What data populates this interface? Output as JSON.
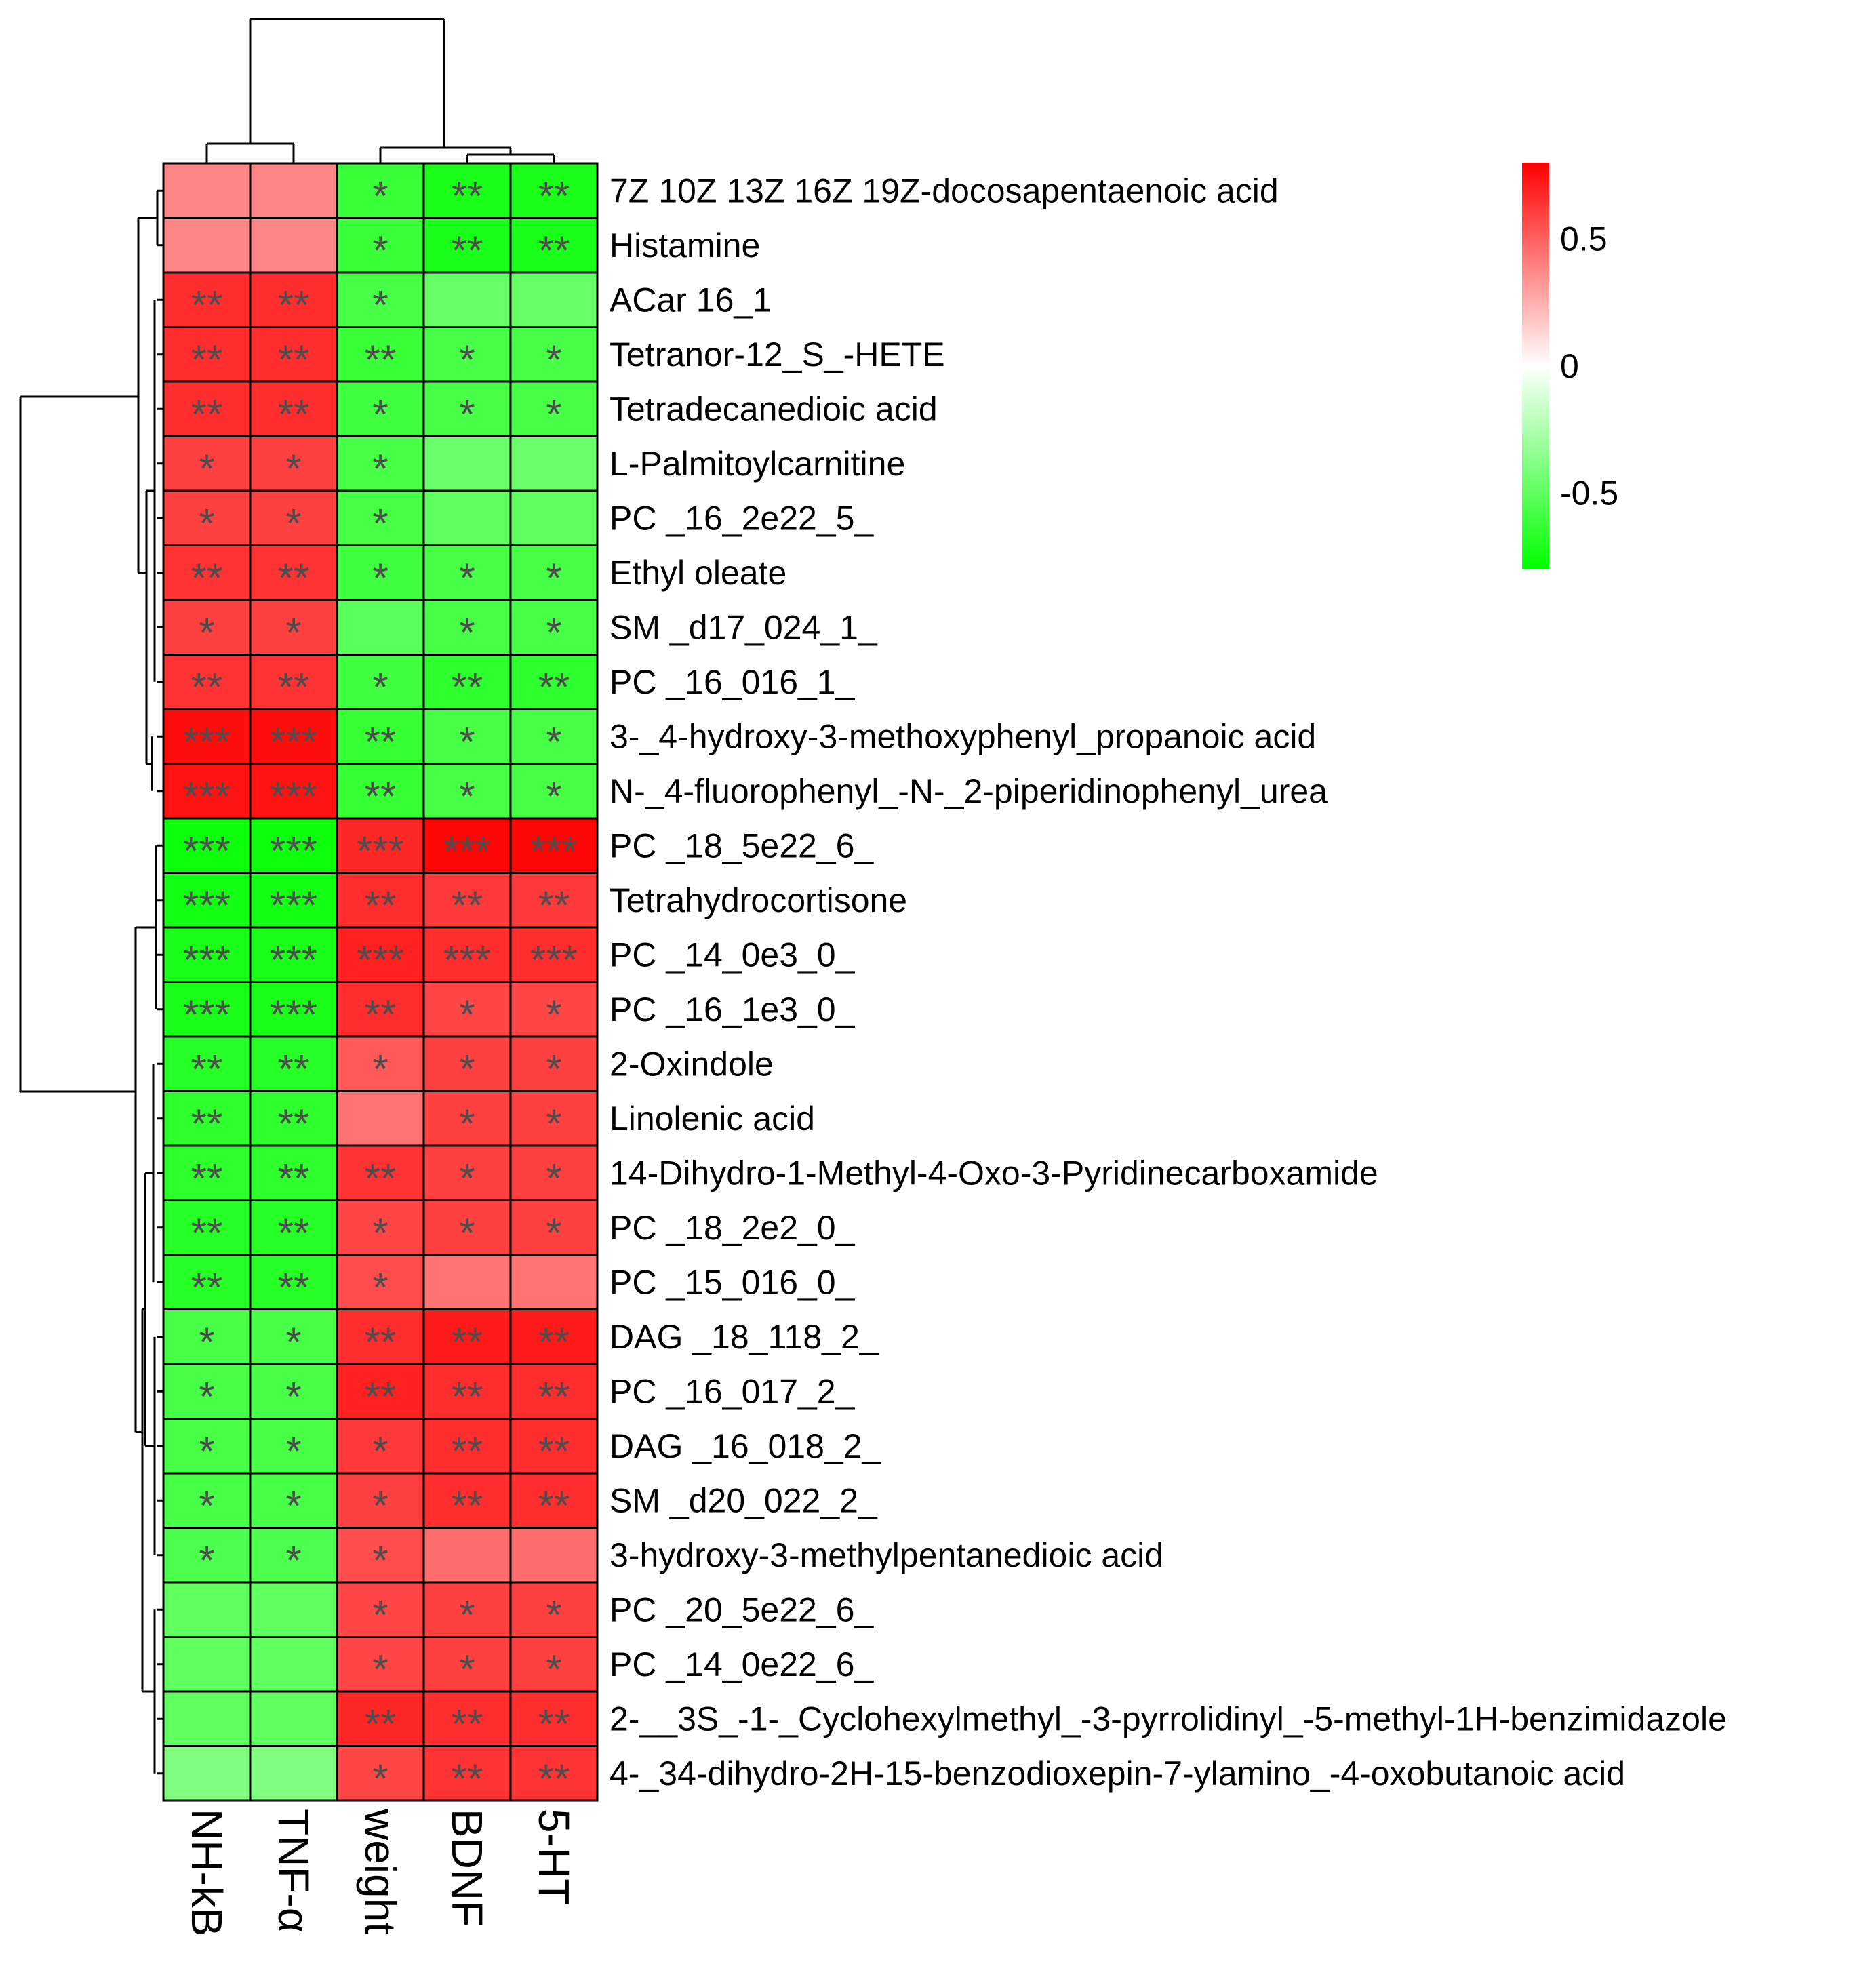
{
  "chart_data": {
    "type": "heatmap",
    "title": "",
    "columns": [
      "NH-kB",
      "TNF-α",
      "weight",
      "BDNF",
      "5-HT"
    ],
    "rows": [
      "7Z 10Z 13Z 16Z 19Z-docosapentaenoic acid",
      "Histamine",
      "ACar 16_1",
      "Tetranor-12_S_-HETE",
      "Tetradecanedioic acid",
      "L-Palmitoylcarnitine",
      "PC _16_2e22_5_",
      "Ethyl oleate",
      "SM _d17_024_1_",
      "PC _16_016_1_",
      "3-_4-hydroxy-3-methoxyphenyl_propanoic acid",
      "N-_4-fluorophenyl_-N-_2-piperidinophenyl_urea",
      "PC _18_5e22_6_",
      "Tetrahydrocortisone",
      "PC _14_0e3_0_",
      "PC _16_1e3_0_",
      "2-Oxindole",
      "Linolenic acid",
      "14-Dihydro-1-Methyl-4-Oxo-3-Pyridinecarboxamide",
      "PC _18_2e2_0_",
      "PC _15_016_0_",
      "DAG _18_118_2_",
      "PC _16_017_2_",
      "DAG _16_018_2_",
      "SM _d20_022_2_",
      "3-hydroxy-3-methylpentanedioic acid",
      "PC _20_5e22_6_",
      "PC _14_0e22_6_",
      "2-__3S_-1-_Cyclohexylmethyl_-3-pyrrolidinyl_-5-methyl-1H-benzimidazole",
      "4-_34-dihydro-2H-15-benzodioxepin-7-ylamino_-4-oxobutanoic acid"
    ],
    "values": [
      [
        0.38,
        0.38,
        -0.62,
        -0.72,
        -0.72
      ],
      [
        0.38,
        0.38,
        -0.62,
        -0.72,
        -0.72
      ],
      [
        0.66,
        0.66,
        -0.58,
        -0.48,
        -0.48
      ],
      [
        0.66,
        0.66,
        -0.62,
        -0.58,
        -0.58
      ],
      [
        0.66,
        0.66,
        -0.6,
        -0.58,
        -0.58
      ],
      [
        0.6,
        0.6,
        -0.58,
        -0.46,
        -0.46
      ],
      [
        0.6,
        0.6,
        -0.58,
        -0.5,
        -0.5
      ],
      [
        0.64,
        0.64,
        -0.6,
        -0.58,
        -0.58
      ],
      [
        0.6,
        0.6,
        -0.52,
        -0.58,
        -0.58
      ],
      [
        0.64,
        0.64,
        -0.6,
        -0.66,
        -0.66
      ],
      [
        0.76,
        0.76,
        -0.64,
        -0.58,
        -0.58
      ],
      [
        0.74,
        0.74,
        -0.64,
        -0.58,
        -0.58
      ],
      [
        -0.76,
        -0.76,
        0.68,
        0.78,
        0.78
      ],
      [
        -0.74,
        -0.74,
        0.66,
        0.62,
        0.62
      ],
      [
        -0.72,
        -0.72,
        0.7,
        0.66,
        0.66
      ],
      [
        -0.72,
        -0.72,
        0.66,
        0.58,
        0.58
      ],
      [
        -0.68,
        -0.68,
        0.52,
        0.6,
        0.6
      ],
      [
        -0.66,
        -0.66,
        0.44,
        0.6,
        0.6
      ],
      [
        -0.66,
        -0.66,
        0.64,
        0.6,
        0.6
      ],
      [
        -0.68,
        -0.68,
        0.58,
        0.6,
        0.6
      ],
      [
        -0.68,
        -0.68,
        0.56,
        0.44,
        0.44
      ],
      [
        -0.58,
        -0.58,
        0.66,
        0.72,
        0.72
      ],
      [
        -0.58,
        -0.58,
        0.7,
        0.66,
        0.66
      ],
      [
        -0.58,
        -0.58,
        0.62,
        0.66,
        0.66
      ],
      [
        -0.58,
        -0.58,
        0.6,
        0.66,
        0.66
      ],
      [
        -0.56,
        -0.56,
        0.56,
        0.46,
        0.46
      ],
      [
        -0.5,
        -0.5,
        0.58,
        0.6,
        0.6
      ],
      [
        -0.5,
        -0.5,
        0.58,
        0.6,
        0.6
      ],
      [
        -0.5,
        -0.5,
        0.68,
        0.66,
        0.66
      ],
      [
        -0.4,
        -0.4,
        0.58,
        0.64,
        0.64
      ]
    ],
    "stars": [
      [
        "",
        "",
        "*",
        "**",
        "**"
      ],
      [
        "",
        "",
        "*",
        "**",
        "**"
      ],
      [
        "**",
        "**",
        "*",
        "",
        ""
      ],
      [
        "**",
        "**",
        "**",
        "*",
        "*"
      ],
      [
        "**",
        "**",
        "*",
        "*",
        "*"
      ],
      [
        "*",
        "*",
        "*",
        "",
        ""
      ],
      [
        "*",
        "*",
        "*",
        "",
        ""
      ],
      [
        "**",
        "**",
        "*",
        "*",
        "*"
      ],
      [
        "*",
        "*",
        "",
        "*",
        "*"
      ],
      [
        "**",
        "**",
        "*",
        "**",
        "**"
      ],
      [
        "***",
        "***",
        "**",
        "*",
        "*"
      ],
      [
        "***",
        "***",
        "**",
        "*",
        "*"
      ],
      [
        "***",
        "***",
        "***",
        "***",
        "***"
      ],
      [
        "***",
        "***",
        "**",
        "**",
        "**"
      ],
      [
        "***",
        "***",
        "***",
        "***",
        "***"
      ],
      [
        "***",
        "***",
        "**",
        "*",
        "*"
      ],
      [
        "**",
        "**",
        "*",
        "*",
        "*"
      ],
      [
        "**",
        "**",
        "",
        "*",
        "*"
      ],
      [
        "**",
        "**",
        "**",
        "*",
        "*"
      ],
      [
        "**",
        "**",
        "*",
        "*",
        "*"
      ],
      [
        "**",
        "**",
        "*",
        "",
        ""
      ],
      [
        "*",
        "*",
        "**",
        "**",
        "**"
      ],
      [
        "*",
        "*",
        "**",
        "**",
        "**"
      ],
      [
        "*",
        "*",
        "*",
        "**",
        "**"
      ],
      [
        "*",
        "*",
        "*",
        "**",
        "**"
      ],
      [
        "*",
        "*",
        "*",
        "",
        ""
      ],
      [
        "",
        "",
        "*",
        "*",
        "*"
      ],
      [
        "",
        "",
        "*",
        "*",
        "*"
      ],
      [
        "",
        "",
        "**",
        "**",
        "**"
      ],
      [
        "",
        "",
        "*",
        "**",
        "**"
      ]
    ],
    "color_scale": {
      "min": -0.8,
      "max": 0.8,
      "low_color": "#00ff00",
      "mid_color": "#ffffff",
      "high_color": "#ff0000",
      "ticks": [
        0.5,
        0,
        -0.5
      ],
      "tick_labels": [
        "0.5",
        "0",
        "-0.5"
      ]
    },
    "legend_position": "top-right",
    "row_dendrogram": "left",
    "column_dendrogram": "top"
  }
}
